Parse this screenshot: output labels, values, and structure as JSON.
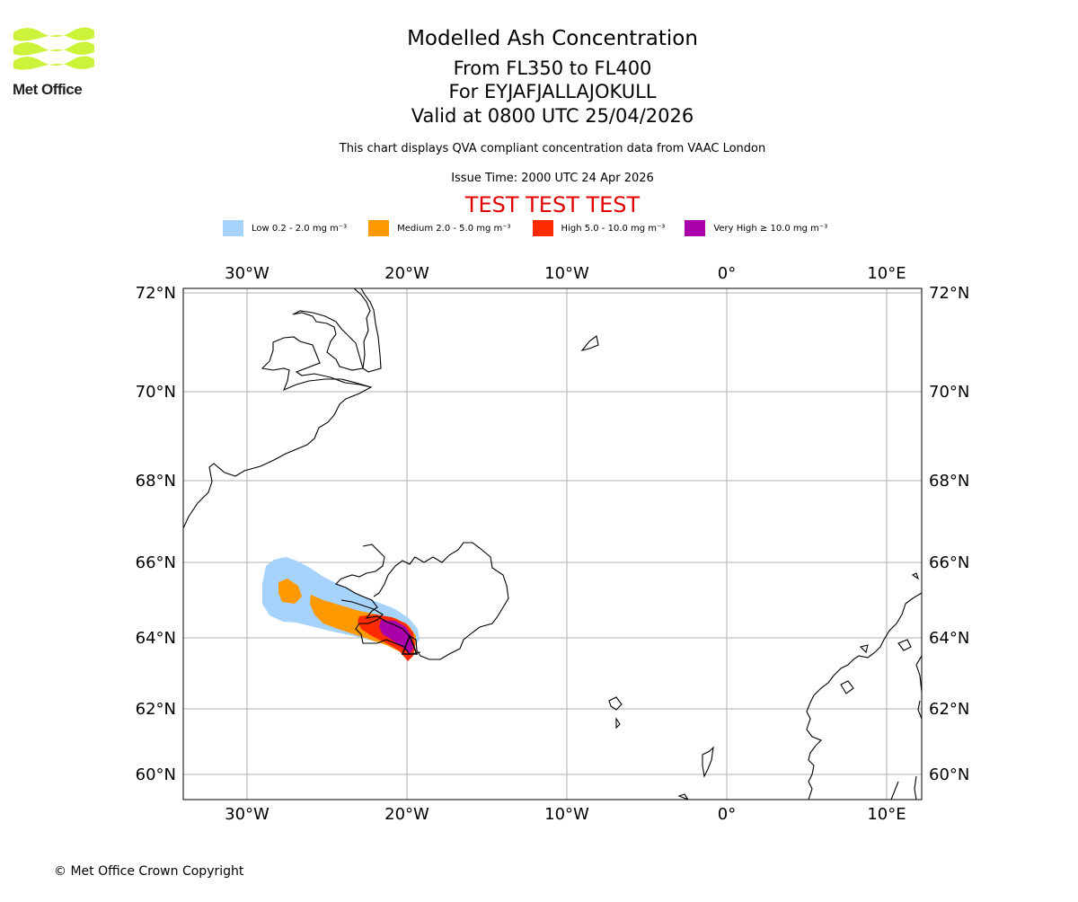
{
  "logo": {
    "text": "Met Office",
    "name": "met-office-logo"
  },
  "header": {
    "title": "Modelled Ash Concentration",
    "flight_levels": "From FL350 to FL400",
    "volcano": "For EYJAFJALLAJOKULL",
    "valid": "Valid at 0800 UTC 25/04/2026",
    "description": "This chart displays QVA compliant concentration data from VAAC London",
    "issue_time": "Issue Time: 2000 UTC 24 Apr 2026",
    "test_banner": "TEST TEST TEST"
  },
  "legend": [
    {
      "label": "Low 0.2 - 2.0 mg m⁻³",
      "color": "#a6d3fb"
    },
    {
      "label": "Medium 2.0 - 5.0 mg m⁻³",
      "color": "#ff9900"
    },
    {
      "label": "High 5.0 - 10.0 mg m⁻³",
      "color": "#ff2a00"
    },
    {
      "label": "Very High ≥ 10.0 mg m⁻³",
      "color": "#aa00aa"
    }
  ],
  "map": {
    "lon_ticks": [
      "30°W",
      "20°W",
      "10°W",
      "0°",
      "10°E"
    ],
    "lat_ticks": [
      "72°N",
      "70°N",
      "68°N",
      "66°N",
      "64°N",
      "62°N",
      "60°N"
    ]
  },
  "footer": {
    "copyright": "© Met Office Crown Copyright"
  }
}
